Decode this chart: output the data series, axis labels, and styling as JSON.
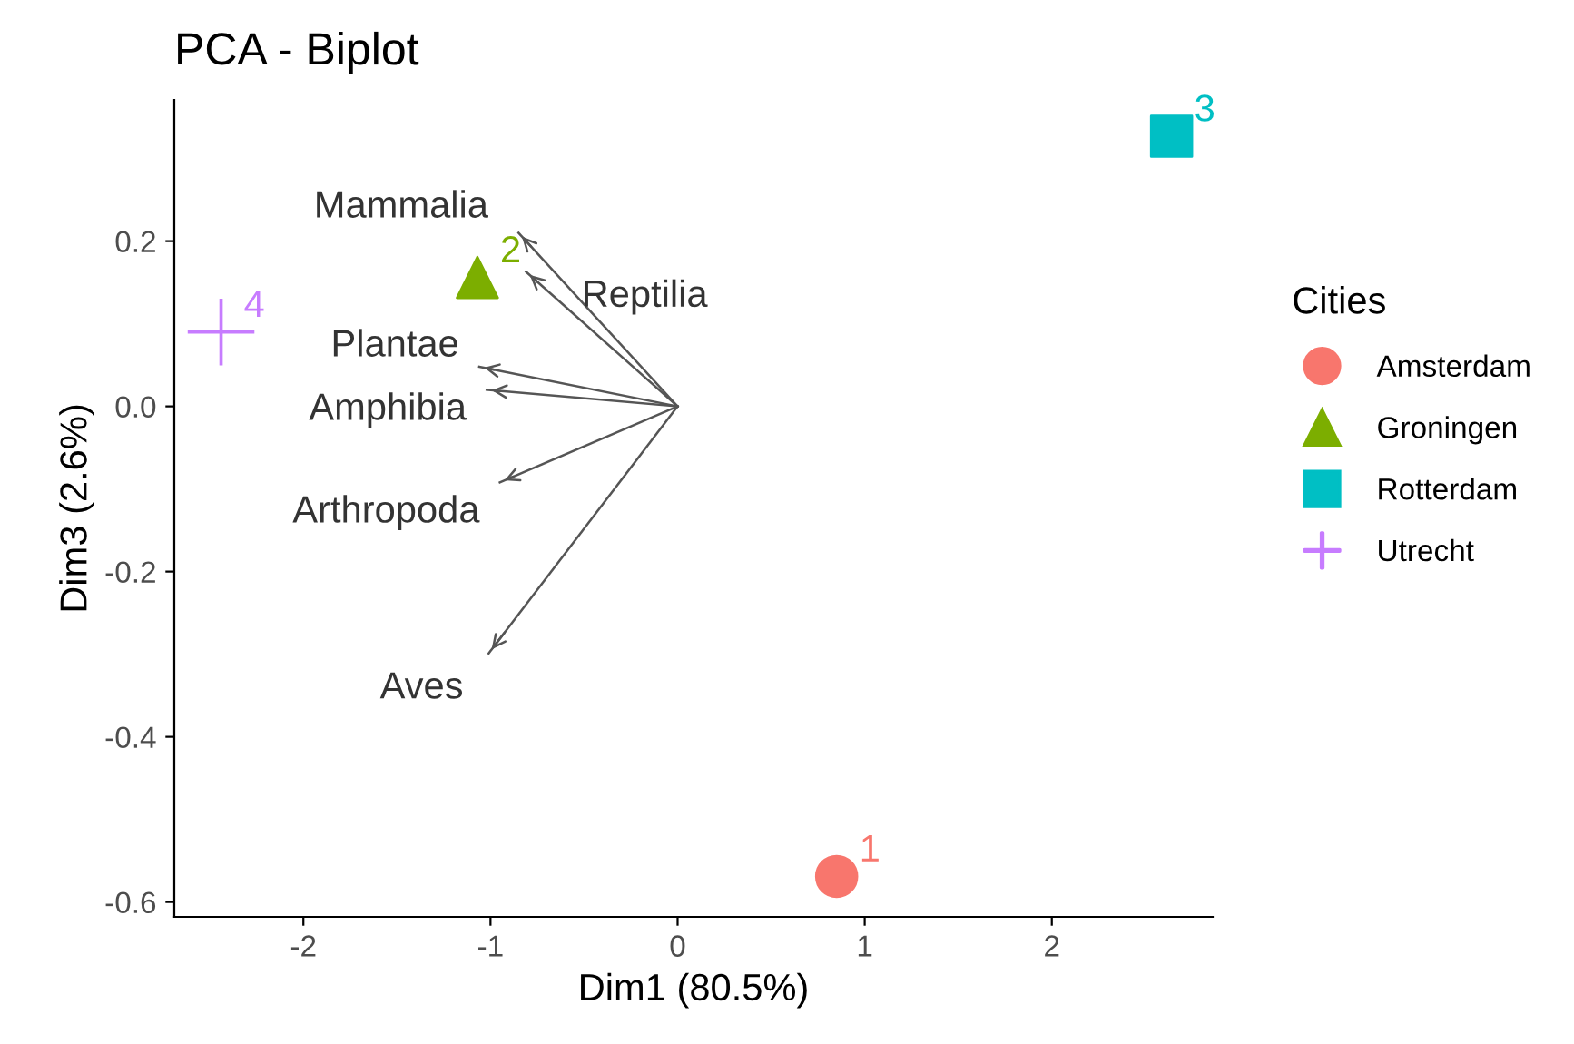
{
  "chart_data": {
    "type": "scatter",
    "title": "PCA - Biplot",
    "xlabel": "Dim1 (80.5%)",
    "ylabel": "Dim3 (2.6%)",
    "legend_title": "Cities",
    "legend": "right",
    "grid": false,
    "xlim": [
      -2.69,
      2.86
    ],
    "xticks": [
      -2,
      -1,
      0,
      1,
      2
    ],
    "ylim": [
      -0.618,
      0.371
    ],
    "yticks": [
      {
        "value": -0.6,
        "label": "-0.6"
      },
      {
        "value": -0.4,
        "label": "-0.4"
      },
      {
        "value": -0.2,
        "label": "-0.2"
      },
      {
        "value": 0,
        "label": "0.0"
      },
      {
        "value": 0.2,
        "label": "0.2"
      }
    ],
    "series": [
      {
        "name": "Amsterdam",
        "color": "#f8766d",
        "marker": "circle",
        "x": [
          0.85
        ],
        "values": [
          -0.569
        ]
      },
      {
        "name": "Groningen",
        "color": "#7cae00",
        "marker": "triangle",
        "x": [
          -1.07
        ],
        "values": [
          0.156
        ]
      },
      {
        "name": "Rotterdam",
        "color": "#00bfc4",
        "marker": "square",
        "x": [
          2.64
        ],
        "values": [
          0.327
        ]
      },
      {
        "name": "Utrecht",
        "color": "#c77cff",
        "marker": "cross",
        "x": [
          -2.44
        ],
        "values": [
          0.09
        ]
      },
      {
        "name": "Mammalia",
        "type": "line",
        "color": "#555555",
        "marker": "none",
        "x": [
          0,
          -0.85
        ],
        "values": [
          0,
          0.21
        ]
      },
      {
        "name": "Reptilia",
        "type": "line",
        "color": "#555555",
        "marker": "none",
        "x": [
          0,
          -0.81
        ],
        "values": [
          0,
          0.163
        ]
      },
      {
        "name": "Plantae",
        "type": "line",
        "color": "#555555",
        "marker": "none",
        "x": [
          0,
          -1.06
        ],
        "values": [
          0,
          0.048
        ]
      },
      {
        "name": "Amphibia",
        "type": "line",
        "color": "#555555",
        "marker": "none",
        "x": [
          0,
          -1.02
        ],
        "values": [
          0,
          0.02
        ]
      },
      {
        "name": "Arthropoda",
        "type": "line",
        "color": "#555555",
        "marker": "none",
        "x": [
          0,
          -0.95
        ],
        "values": [
          0,
          -0.092
        ]
      },
      {
        "name": "Aves",
        "type": "line",
        "color": "#555555",
        "marker": "none",
        "x": [
          0,
          -1.01
        ],
        "values": [
          0,
          -0.299
        ]
      }
    ],
    "annotations": [
      {
        "text": "1",
        "x": 0.85,
        "y": -0.569
      },
      {
        "text": "2",
        "x": -1.07,
        "y": 0.156
      },
      {
        "text": "3",
        "x": 2.64,
        "y": 0.327
      },
      {
        "text": "4",
        "x": -2.44,
        "y": 0.09
      }
    ]
  }
}
